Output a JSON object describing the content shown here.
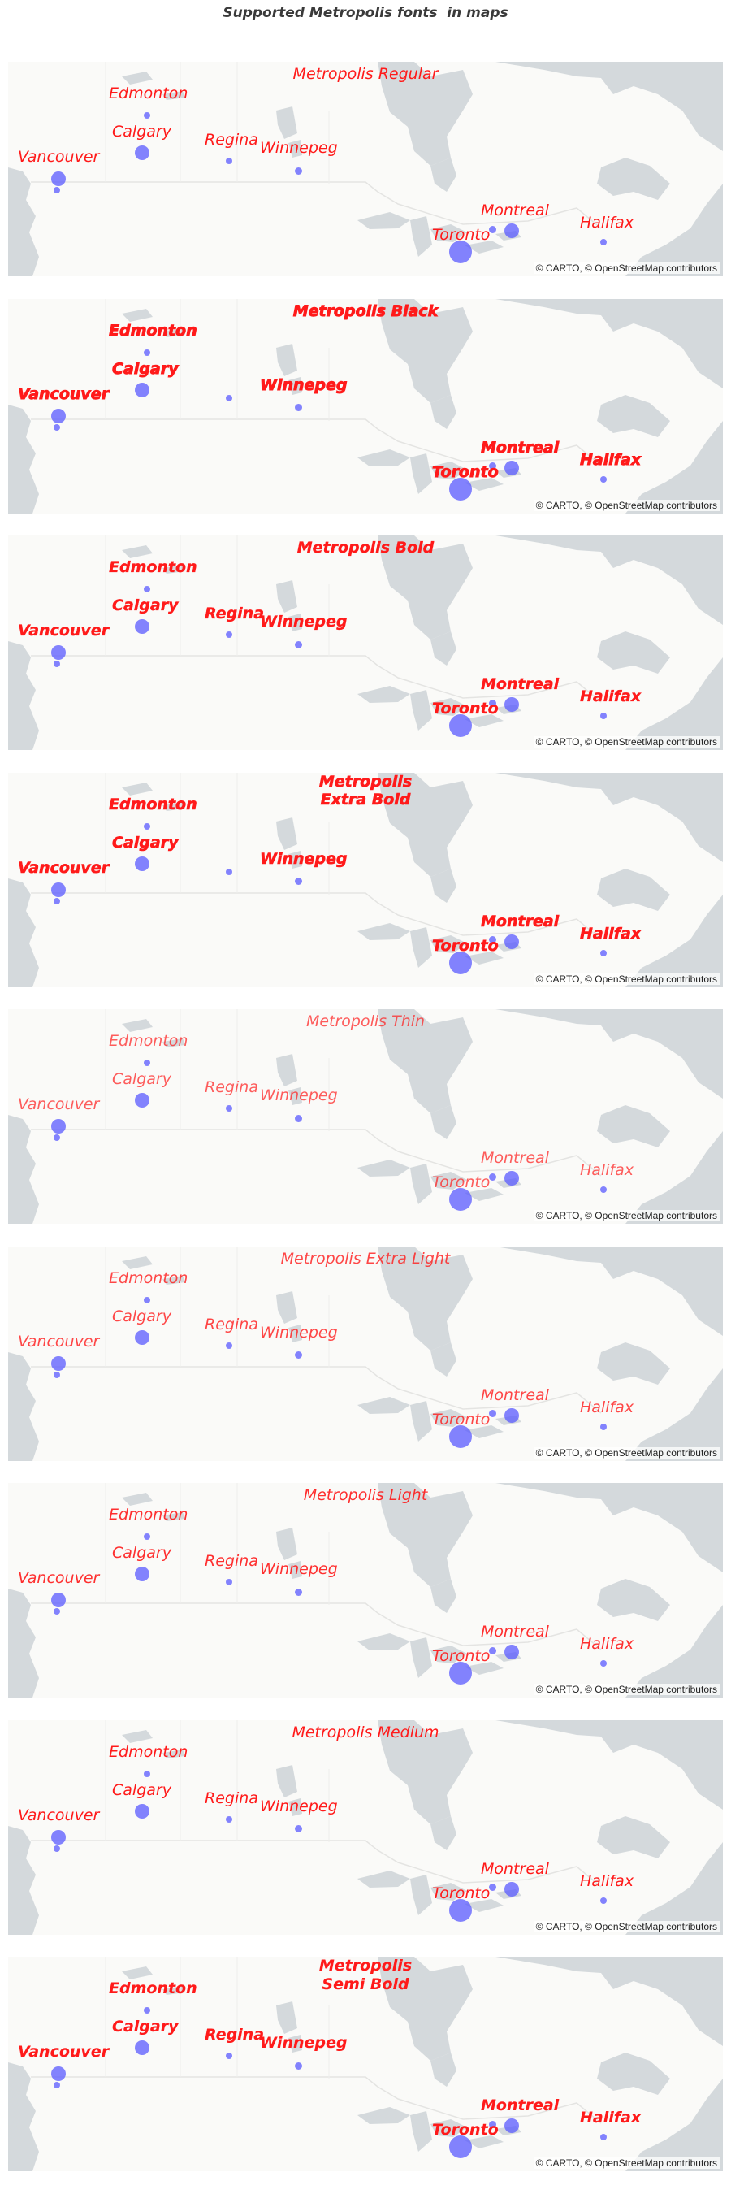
{
  "page": {
    "title": "Supported Metropolis fonts  in maps"
  },
  "style": {
    "label_color": "#ff1a1a",
    "dot_color": "#6464ff",
    "land_color": "#fafaf8",
    "water_color": "#d4d9dc"
  },
  "attribution": "© CARTO, © OpenStreetMap contributors",
  "maps": [
    {
      "title": "Metropolis Regular",
      "weight": "regular",
      "cities": [
        "Edmonton",
        "Calgary",
        "Regina",
        "Winnepeg",
        "Vancouver",
        "Montreal",
        "Toronto",
        "Halifax"
      ]
    },
    {
      "title": "Metropolis Black",
      "weight": "black",
      "cities": [
        "Edmonton",
        "Calgary",
        "Winnepeg",
        "Vancouver",
        "Montreal",
        "Toronto",
        "Halifax"
      ]
    },
    {
      "title": "Metropolis Bold",
      "weight": "bold",
      "cities": [
        "Edmonton",
        "Calgary",
        "Regina",
        "Winnepeg",
        "Vancouver",
        "Montreal",
        "Toronto",
        "Halifax"
      ]
    },
    {
      "title": "Metropolis\nExtra Bold",
      "weight": "extra-bold",
      "cities": [
        "Edmonton",
        "Calgary",
        "Winnepeg",
        "Vancouver",
        "Montreal",
        "Toronto",
        "Halifax"
      ]
    },
    {
      "title": "Metropolis Thin",
      "weight": "thin",
      "cities": [
        "Edmonton",
        "Calgary",
        "Regina",
        "Winnepeg",
        "Vancouver",
        "Montreal",
        "Toronto",
        "Halifax"
      ]
    },
    {
      "title": "Metropolis Extra Light",
      "weight": "extra-light",
      "cities": [
        "Edmonton",
        "Calgary",
        "Regina",
        "Winnepeg",
        "Vancouver",
        "Montreal",
        "Toronto",
        "Halifax"
      ]
    },
    {
      "title": "Metropolis Light",
      "weight": "light",
      "cities": [
        "Edmonton",
        "Calgary",
        "Regina",
        "Winnepeg",
        "Vancouver",
        "Montreal",
        "Toronto",
        "Halifax"
      ]
    },
    {
      "title": "Metropolis Medium",
      "weight": "medium",
      "cities": [
        "Edmonton",
        "Calgary",
        "Regina",
        "Winnepeg",
        "Vancouver",
        "Montreal",
        "Toronto",
        "Halifax"
      ]
    },
    {
      "title": "Metropolis\nSemi Bold",
      "weight": "semi-bold",
      "cities": [
        "Edmonton",
        "Calgary",
        "Regina",
        "Winnepeg",
        "Vancouver",
        "Montreal",
        "Toronto",
        "Halifax"
      ]
    }
  ]
}
